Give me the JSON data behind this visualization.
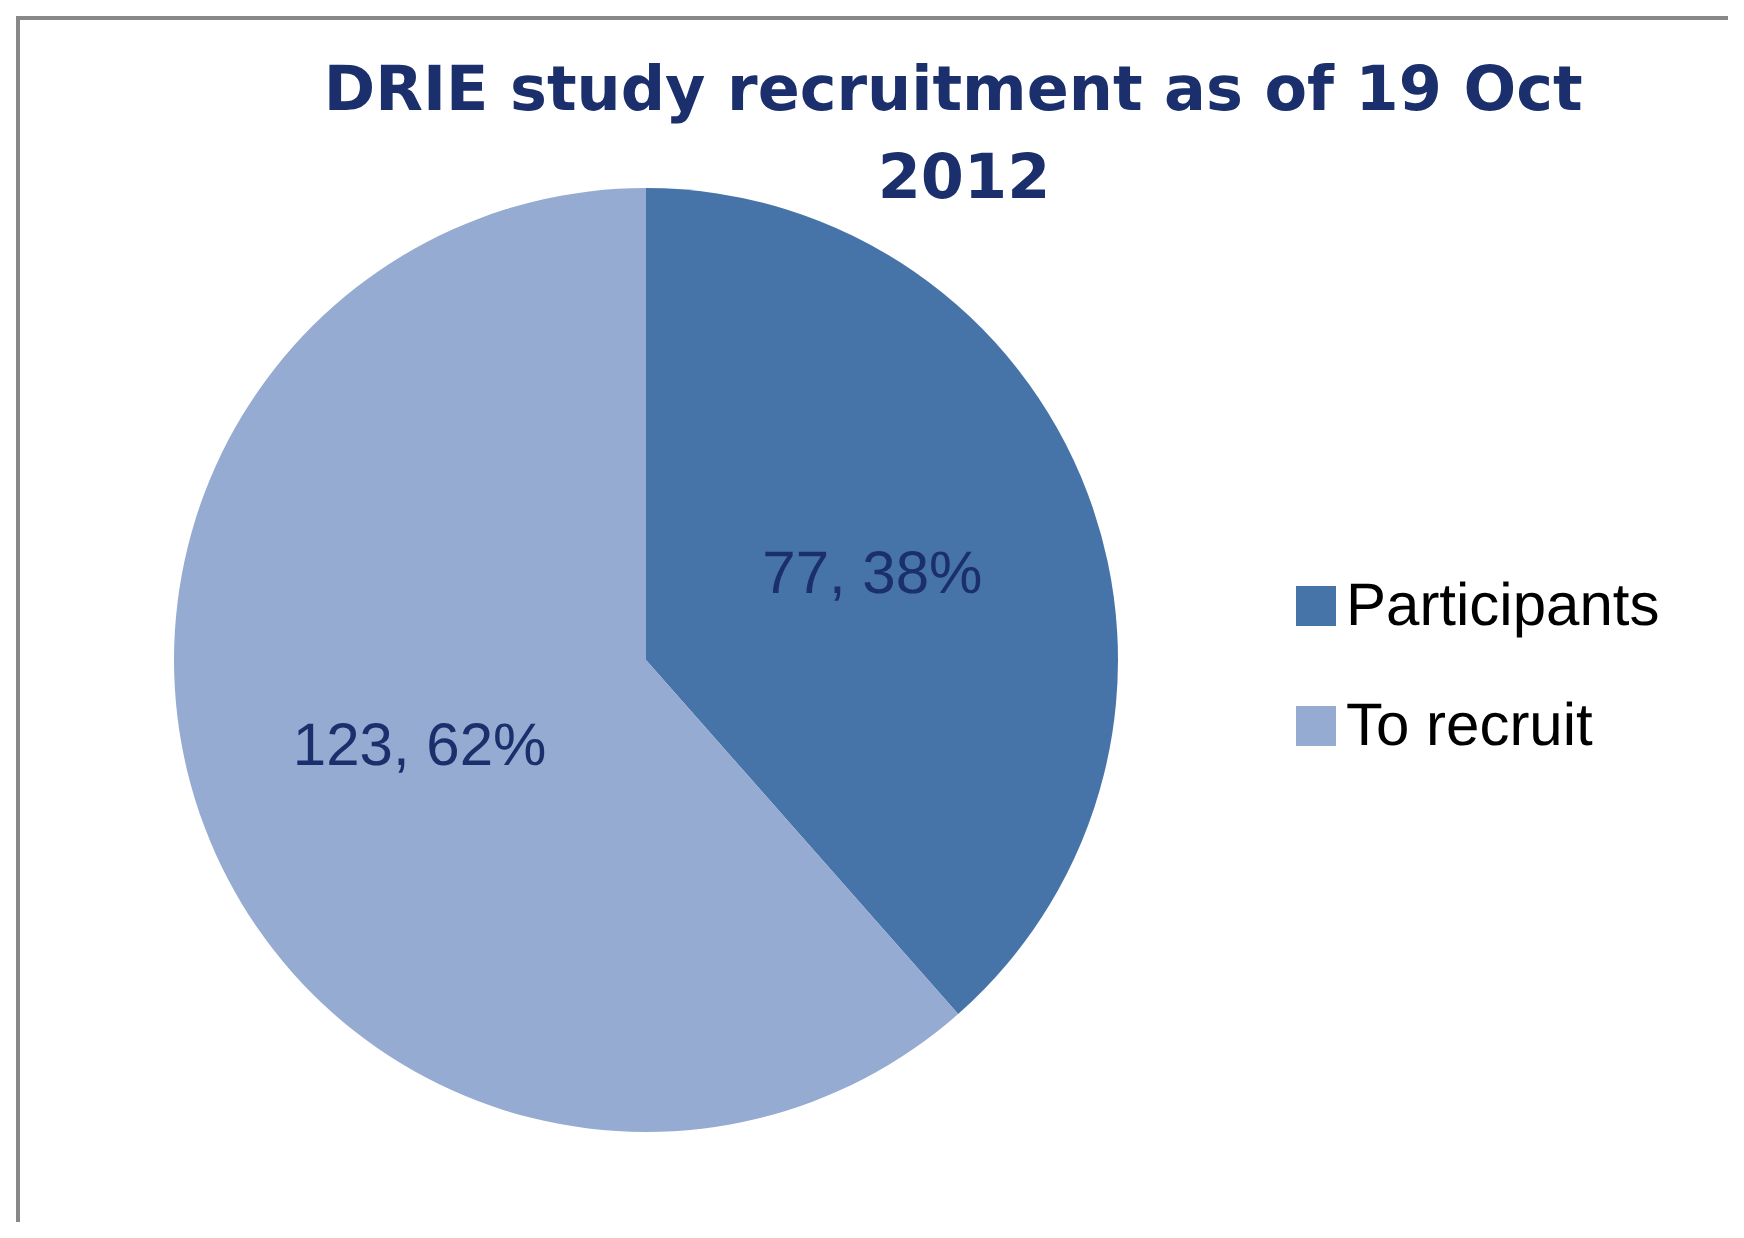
{
  "chart_data": {
    "type": "pie",
    "title": "DRIE study recruitment as of 19 Oct 2012",
    "categories": [
      "Participants",
      "To recruit"
    ],
    "values": [
      77,
      123
    ],
    "colors": [
      "#4674a9",
      "#95abd2"
    ],
    "value_labels": [
      "77, 38%",
      "123, 62%"
    ],
    "legend": "right"
  }
}
